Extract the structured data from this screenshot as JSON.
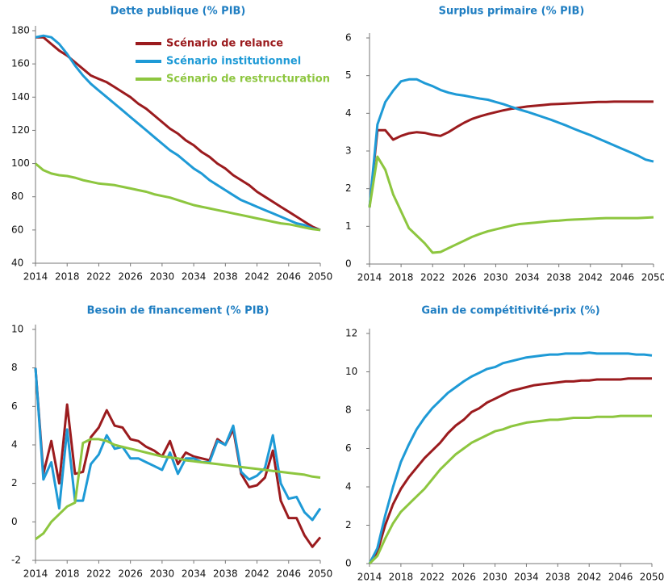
{
  "chart_data": [
    {
      "type": "line",
      "title": "Dette publique (% PIB)",
      "x": [
        2014,
        2015,
        2016,
        2017,
        2018,
        2019,
        2020,
        2021,
        2022,
        2023,
        2024,
        2025,
        2026,
        2027,
        2028,
        2029,
        2030,
        2031,
        2032,
        2033,
        2034,
        2035,
        2036,
        2037,
        2038,
        2039,
        2040,
        2041,
        2042,
        2043,
        2044,
        2045,
        2046,
        2047,
        2048,
        2049,
        2050
      ],
      "series": [
        {
          "name": "Scénario de relance",
          "color": "#9b1b1e",
          "values": [
            176,
            176,
            172,
            168,
            165,
            161,
            157,
            153,
            151,
            149,
            146,
            143,
            140,
            136,
            133,
            129,
            125,
            121,
            118,
            114,
            111,
            107,
            104,
            100,
            97,
            93,
            90,
            87,
            83,
            80,
            77,
            74,
            71,
            68,
            65,
            62,
            60
          ]
        },
        {
          "name": "Scénario institutionnel",
          "color": "#1e9ad6",
          "values": [
            176,
            177,
            176,
            172,
            166,
            159,
            153,
            148,
            144,
            140,
            136,
            132,
            128,
            124,
            120,
            116,
            112,
            108,
            105,
            101,
            97,
            94,
            90,
            87,
            84,
            81,
            78,
            76,
            74,
            72,
            70,
            68,
            66,
            64,
            63,
            61,
            60
          ]
        },
        {
          "name": "Scénario de restructuration",
          "color": "#8dc63f",
          "values": [
            100,
            96,
            94,
            93,
            92.5,
            91.5,
            90,
            89,
            88,
            87.5,
            87,
            86,
            85,
            84,
            83,
            81.5,
            80.5,
            79.5,
            78,
            76.5,
            75,
            74,
            73,
            72,
            71,
            70,
            69,
            68,
            67,
            66,
            65,
            64,
            63.5,
            62.5,
            61.5,
            60.5,
            60
          ]
        }
      ],
      "xlim": [
        2014,
        2050
      ],
      "xticks": [
        2014,
        2018,
        2022,
        2026,
        2030,
        2034,
        2038,
        2042,
        2046,
        2050
      ],
      "ylim": [
        40,
        180
      ],
      "yticks": [
        40,
        60,
        80,
        100,
        120,
        140,
        160,
        180
      ]
    },
    {
      "type": "line",
      "title": "Surplus primaire (% PIB)",
      "x": [
        2014,
        2015,
        2016,
        2017,
        2018,
        2019,
        2020,
        2021,
        2022,
        2023,
        2024,
        2025,
        2026,
        2027,
        2028,
        2029,
        2030,
        2031,
        2032,
        2033,
        2034,
        2035,
        2036,
        2037,
        2038,
        2039,
        2040,
        2041,
        2042,
        2043,
        2044,
        2045,
        2046,
        2047,
        2048,
        2049,
        2050
      ],
      "series": [
        {
          "color": "#9b1b1e",
          "values": [
            1.5,
            3.55,
            3.55,
            3.3,
            3.4,
            3.47,
            3.5,
            3.48,
            3.43,
            3.4,
            3.5,
            3.63,
            3.75,
            3.85,
            3.92,
            3.98,
            4.03,
            4.08,
            4.12,
            4.15,
            4.18,
            4.2,
            4.22,
            4.24,
            4.25,
            4.26,
            4.27,
            4.28,
            4.29,
            4.3,
            4.3,
            4.31,
            4.31,
            4.31,
            4.31,
            4.31,
            4.31
          ]
        },
        {
          "color": "#1e9ad6",
          "values": [
            1.5,
            3.7,
            4.3,
            4.6,
            4.85,
            4.9,
            4.9,
            4.8,
            4.72,
            4.62,
            4.55,
            4.5,
            4.47,
            4.43,
            4.39,
            4.36,
            4.3,
            4.24,
            4.17,
            4.1,
            4.04,
            3.97,
            3.9,
            3.83,
            3.75,
            3.67,
            3.58,
            3.5,
            3.42,
            3.33,
            3.24,
            3.15,
            3.06,
            2.97,
            2.88,
            2.77,
            2.72
          ]
        },
        {
          "color": "#8dc63f",
          "values": [
            1.5,
            2.85,
            2.5,
            1.85,
            1.4,
            0.95,
            0.75,
            0.55,
            0.3,
            0.32,
            0.42,
            0.52,
            0.62,
            0.72,
            0.8,
            0.87,
            0.92,
            0.97,
            1.02,
            1.06,
            1.08,
            1.1,
            1.12,
            1.14,
            1.15,
            1.17,
            1.18,
            1.19,
            1.2,
            1.21,
            1.22,
            1.22,
            1.22,
            1.22,
            1.22,
            1.23,
            1.24
          ]
        }
      ],
      "xlim": [
        2014,
        2050
      ],
      "xticks": [
        2014,
        2018,
        2022,
        2026,
        2030,
        2034,
        2038,
        2042,
        2046,
        2050
      ],
      "ylim": [
        0,
        6
      ],
      "yticks": [
        0,
        1,
        2,
        3,
        4,
        5,
        6
      ]
    },
    {
      "type": "line",
      "title": "Besoin de financement (% PIB)",
      "x": [
        2014,
        2015,
        2016,
        2017,
        2018,
        2019,
        2020,
        2021,
        2022,
        2023,
        2024,
        2025,
        2026,
        2027,
        2028,
        2029,
        2030,
        2031,
        2032,
        2033,
        2034,
        2035,
        2036,
        2037,
        2038,
        2039,
        2040,
        2041,
        2042,
        2043,
        2044,
        2045,
        2046,
        2047,
        2048,
        2049,
        2050
      ],
      "series": [
        {
          "color": "#9b1b1e",
          "values": [
            8,
            2.5,
            4.2,
            2,
            6.1,
            2.5,
            2.6,
            4.4,
            4.9,
            5.8,
            5,
            4.9,
            4.3,
            4.2,
            3.9,
            3.7,
            3.4,
            4.2,
            3,
            3.6,
            3.4,
            3.3,
            3.2,
            4.3,
            4,
            4.8,
            2.5,
            1.8,
            1.9,
            2.3,
            3.7,
            1.1,
            0.2,
            0.2,
            -0.7,
            -1.3,
            -0.8
          ]
        },
        {
          "color": "#1e9ad6",
          "values": [
            8,
            2.2,
            3.1,
            0.7,
            4.8,
            1.1,
            1.1,
            3,
            3.5,
            4.5,
            3.8,
            3.9,
            3.3,
            3.3,
            3.1,
            2.9,
            2.7,
            3.6,
            2.5,
            3.3,
            3.3,
            3.1,
            3.1,
            4.2,
            4,
            5,
            2.6,
            2.2,
            2.4,
            2.8,
            4.5,
            2,
            1.2,
            1.3,
            0.5,
            0.1,
            0.7
          ]
        },
        {
          "color": "#8dc63f",
          "values": [
            -0.9,
            -0.6,
            0,
            0.4,
            0.8,
            1,
            4.1,
            4.3,
            4.3,
            4.2,
            4.0,
            3.9,
            3.8,
            3.7,
            3.6,
            3.5,
            3.4,
            3.35,
            3.3,
            3.2,
            3.15,
            3.1,
            3.05,
            3.0,
            2.95,
            2.9,
            2.85,
            2.8,
            2.75,
            2.7,
            2.65,
            2.6,
            2.55,
            2.5,
            2.45,
            2.35,
            2.3
          ]
        }
      ],
      "xlim": [
        2014,
        2050
      ],
      "xticks": [
        2014,
        2018,
        2022,
        2026,
        2030,
        2034,
        2038,
        2042,
        2046,
        2050
      ],
      "ylim": [
        -2,
        10
      ],
      "yticks": [
        -2,
        0,
        2,
        4,
        6,
        8,
        10
      ]
    },
    {
      "type": "line",
      "title": "Gain de compétitivité-prix (%)",
      "x": [
        2014,
        2015,
        2016,
        2017,
        2018,
        2019,
        2020,
        2021,
        2022,
        2023,
        2024,
        2025,
        2026,
        2027,
        2028,
        2029,
        2030,
        2031,
        2032,
        2033,
        2034,
        2035,
        2036,
        2037,
        2038,
        2039,
        2040,
        2041,
        2042,
        2043,
        2044,
        2045,
        2046,
        2047,
        2048,
        2049,
        2050
      ],
      "series": [
        {
          "color": "#9b1b1e",
          "values": [
            0,
            0.6,
            2,
            3.1,
            3.9,
            4.5,
            5,
            5.5,
            5.9,
            6.3,
            6.8,
            7.2,
            7.5,
            7.9,
            8.1,
            8.4,
            8.6,
            8.8,
            9.0,
            9.1,
            9.2,
            9.3,
            9.35,
            9.4,
            9.45,
            9.5,
            9.5,
            9.55,
            9.55,
            9.6,
            9.6,
            9.6,
            9.6,
            9.65,
            9.65,
            9.65,
            9.65
          ]
        },
        {
          "color": "#1e9ad6",
          "values": [
            0,
            0.8,
            2.5,
            4,
            5.3,
            6.2,
            7,
            7.6,
            8.1,
            8.5,
            8.9,
            9.2,
            9.5,
            9.75,
            9.95,
            10.15,
            10.25,
            10.45,
            10.55,
            10.65,
            10.75,
            10.8,
            10.85,
            10.9,
            10.9,
            10.95,
            10.95,
            10.95,
            11,
            10.95,
            10.95,
            10.95,
            10.95,
            10.95,
            10.9,
            10.9,
            10.85
          ]
        },
        {
          "color": "#8dc63f",
          "values": [
            0,
            0.4,
            1.3,
            2.1,
            2.7,
            3.1,
            3.5,
            3.9,
            4.4,
            4.9,
            5.3,
            5.7,
            6,
            6.3,
            6.5,
            6.7,
            6.9,
            7.0,
            7.15,
            7.25,
            7.35,
            7.4,
            7.45,
            7.5,
            7.5,
            7.55,
            7.6,
            7.6,
            7.6,
            7.65,
            7.65,
            7.65,
            7.7,
            7.7,
            7.7,
            7.7,
            7.7
          ]
        }
      ],
      "xlim": [
        2014,
        2050
      ],
      "xticks": [
        2014,
        2018,
        2022,
        2026,
        2030,
        2034,
        2038,
        2042,
        2046,
        2050
      ],
      "ylim": [
        0,
        12
      ],
      "yticks": [
        0,
        2,
        4,
        6,
        8,
        10,
        12
      ]
    }
  ]
}
